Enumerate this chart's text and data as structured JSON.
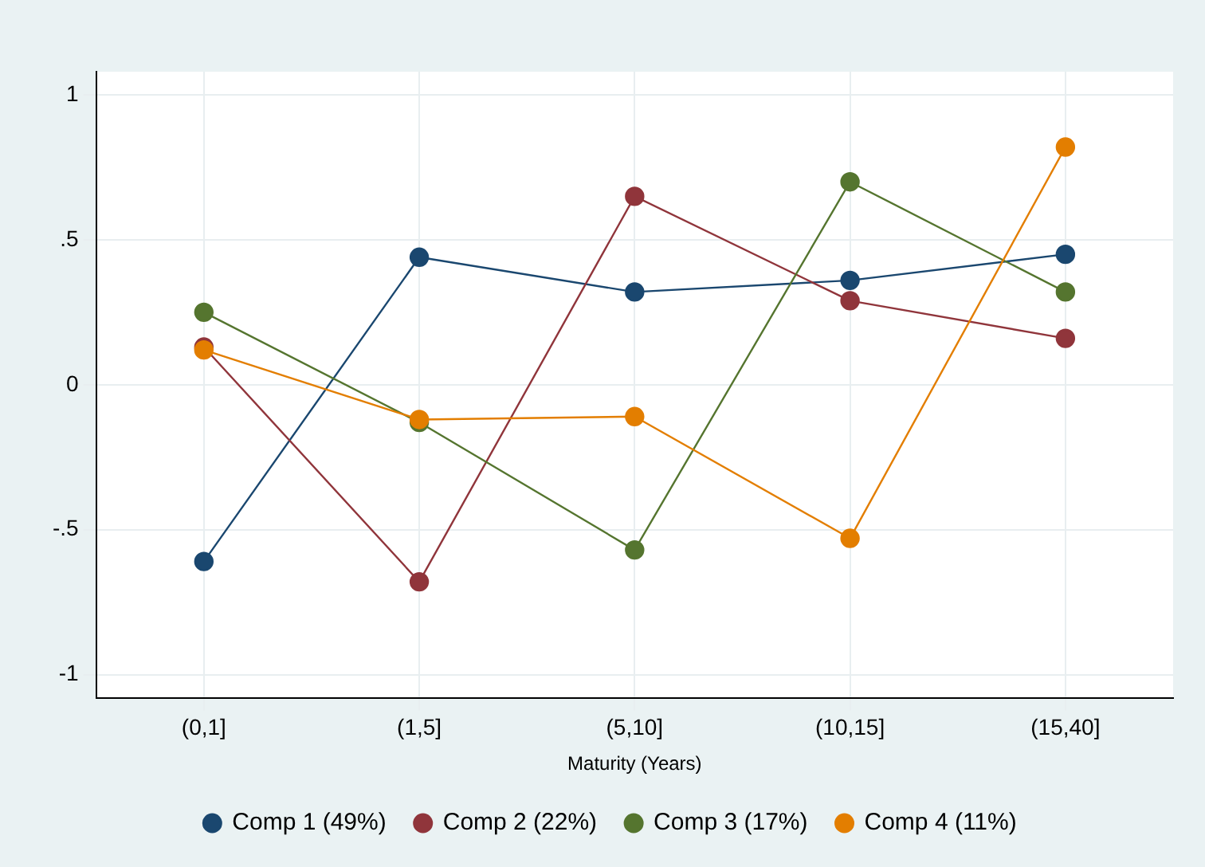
{
  "chart_data": {
    "type": "line",
    "xlabel": "Maturity (Years)",
    "categories": [
      "(0,1]",
      "(1,5]",
      "(5,10]",
      "(10,15]",
      "(15,40]"
    ],
    "series": [
      {
        "name": "Comp 1 (49%)",
        "color": "#1a476f",
        "values": [
          -0.61,
          0.44,
          0.32,
          0.36,
          0.45
        ]
      },
      {
        "name": "Comp 2 (22%)",
        "color": "#90353b",
        "values": [
          0.13,
          -0.68,
          0.65,
          0.29,
          0.16
        ]
      },
      {
        "name": "Comp 3 (17%)",
        "color": "#55752f",
        "values": [
          0.25,
          -0.13,
          -0.57,
          0.7,
          0.32
        ]
      },
      {
        "name": "Comp 4 (11%)",
        "color": "#e37e00",
        "values": [
          0.12,
          -0.12,
          -0.11,
          -0.53,
          0.82
        ]
      }
    ],
    "ylim": [
      -1.08,
      1.08
    ],
    "yticks": [
      {
        "value": -1,
        "label": "-1"
      },
      {
        "value": -0.5,
        "label": "-.5"
      },
      0,
      {
        "value": 0.5,
        "label": ".5"
      },
      1
    ],
    "grid": true,
    "legend": "bottom",
    "marker": "circle",
    "line_style": "solid"
  }
}
